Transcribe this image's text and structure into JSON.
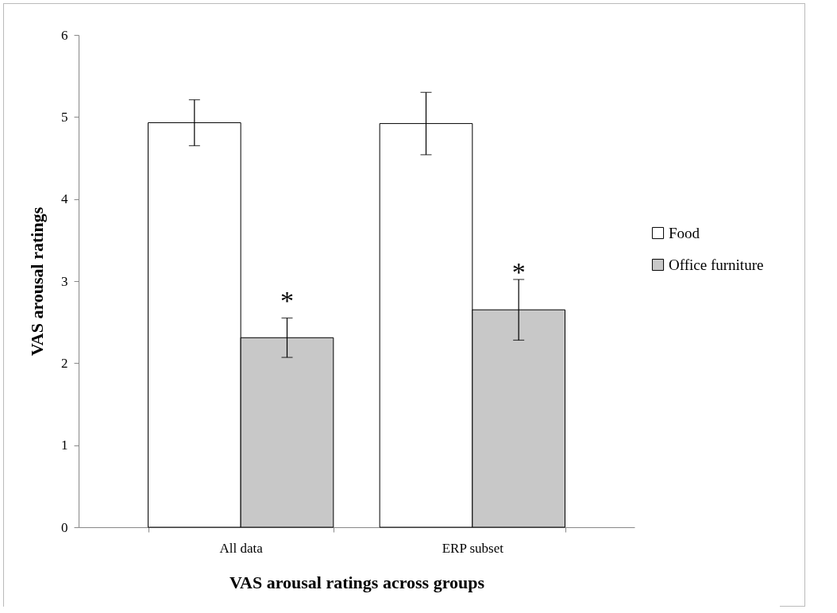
{
  "chart_data": {
    "type": "bar",
    "xlabel": "VAS arousal ratings across groups",
    "ylabel": "VAS arousal ratings",
    "categories": [
      "All data",
      "ERP subset"
    ],
    "series": [
      {
        "name": "Food",
        "color": "#ffffff",
        "values": [
          4.93,
          4.92
        ],
        "errors": [
          0.28,
          0.38
        ]
      },
      {
        "name": "Office furniture",
        "color": "#c8c8c8",
        "values": [
          2.31,
          2.65
        ],
        "errors": [
          0.24,
          0.37
        ]
      }
    ],
    "annotations": [
      {
        "text": "*",
        "x": "All data",
        "y": 2.75
      },
      {
        "text": "*",
        "x": "ERP subset",
        "y": 3.1
      }
    ],
    "ylim": [
      0,
      6
    ],
    "yticks": [
      0,
      1,
      2,
      3,
      4,
      5,
      6
    ],
    "grid": false,
    "legend": "right"
  }
}
